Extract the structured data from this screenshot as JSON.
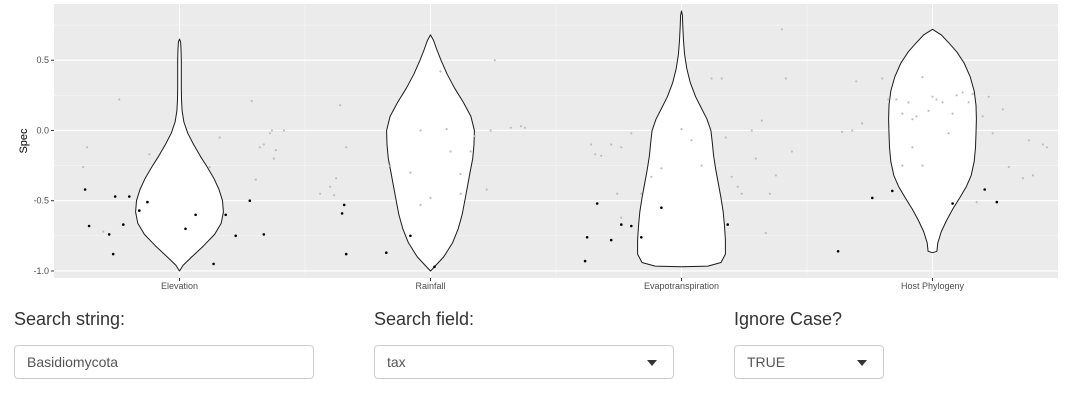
{
  "chart_data": {
    "type": "violin",
    "ylabel": "Spec",
    "xlabel": "",
    "ylim": [
      -1.05,
      0.9
    ],
    "yticks": [
      -1.0,
      -0.5,
      0.0,
      0.5
    ],
    "ytick_labels": [
      "-1.0",
      "-0.5",
      "0.0",
      "0.5"
    ],
    "categories": [
      "Elevation",
      "Rainfall",
      "Evapotranspiration",
      "Host Phylogeny"
    ],
    "grid": true,
    "violins": [
      {
        "category": "Elevation",
        "min": -1.0,
        "max": 0.65,
        "profile": [
          [
            -1.0,
            0.0
          ],
          [
            -0.96,
            0.08
          ],
          [
            -0.9,
            0.28
          ],
          [
            -0.82,
            0.55
          ],
          [
            -0.74,
            0.8
          ],
          [
            -0.66,
            0.95
          ],
          [
            -0.58,
            1.0
          ],
          [
            -0.5,
            0.98
          ],
          [
            -0.42,
            0.9
          ],
          [
            -0.34,
            0.78
          ],
          [
            -0.26,
            0.63
          ],
          [
            -0.18,
            0.47
          ],
          [
            -0.1,
            0.32
          ],
          [
            -0.02,
            0.19
          ],
          [
            0.06,
            0.1
          ],
          [
            0.14,
            0.06
          ],
          [
            0.22,
            0.045
          ],
          [
            0.3,
            0.04
          ],
          [
            0.4,
            0.04
          ],
          [
            0.5,
            0.04
          ],
          [
            0.58,
            0.035
          ],
          [
            0.63,
            0.025
          ],
          [
            0.65,
            0.0
          ]
        ]
      },
      {
        "category": "Rainfall",
        "min": -1.0,
        "max": 0.68,
        "profile": [
          [
            -1.0,
            0.0
          ],
          [
            -0.96,
            0.12
          ],
          [
            -0.9,
            0.3
          ],
          [
            -0.8,
            0.5
          ],
          [
            -0.7,
            0.63
          ],
          [
            -0.6,
            0.72
          ],
          [
            -0.5,
            0.78
          ],
          [
            -0.4,
            0.84
          ],
          [
            -0.3,
            0.9
          ],
          [
            -0.2,
            0.96
          ],
          [
            -0.1,
            0.99
          ],
          [
            0.0,
            1.0
          ],
          [
            0.1,
            0.92
          ],
          [
            0.2,
            0.75
          ],
          [
            0.3,
            0.55
          ],
          [
            0.4,
            0.38
          ],
          [
            0.5,
            0.24
          ],
          [
            0.58,
            0.14
          ],
          [
            0.64,
            0.07
          ],
          [
            0.68,
            0.0
          ]
        ]
      },
      {
        "category": "Evapotranspiration",
        "min": -0.97,
        "max": 0.85,
        "profile": [
          [
            -0.97,
            0.0
          ],
          [
            -0.965,
            0.6
          ],
          [
            -0.94,
            0.9
          ],
          [
            -0.88,
            1.0
          ],
          [
            -0.78,
            1.0
          ],
          [
            -0.68,
            0.98
          ],
          [
            -0.58,
            0.95
          ],
          [
            -0.48,
            0.9
          ],
          [
            -0.38,
            0.84
          ],
          [
            -0.28,
            0.78
          ],
          [
            -0.18,
            0.73
          ],
          [
            -0.08,
            0.7
          ],
          [
            0.0,
            0.67
          ],
          [
            0.08,
            0.58
          ],
          [
            0.16,
            0.45
          ],
          [
            0.24,
            0.32
          ],
          [
            0.34,
            0.2
          ],
          [
            0.44,
            0.12
          ],
          [
            0.54,
            0.07
          ],
          [
            0.64,
            0.045
          ],
          [
            0.74,
            0.03
          ],
          [
            0.82,
            0.02
          ],
          [
            0.85,
            0.0
          ]
        ]
      },
      {
        "category": "Host Phylogeny",
        "min": -0.87,
        "max": 0.72,
        "profile": [
          [
            -0.87,
            0.0
          ],
          [
            -0.86,
            0.1
          ],
          [
            -0.8,
            0.12
          ],
          [
            -0.72,
            0.2
          ],
          [
            -0.64,
            0.32
          ],
          [
            -0.56,
            0.46
          ],
          [
            -0.48,
            0.62
          ],
          [
            -0.4,
            0.77
          ],
          [
            -0.32,
            0.88
          ],
          [
            -0.22,
            0.95
          ],
          [
            -0.12,
            0.98
          ],
          [
            -0.02,
            0.99
          ],
          [
            0.08,
            1.0
          ],
          [
            0.18,
            0.99
          ],
          [
            0.28,
            0.95
          ],
          [
            0.38,
            0.86
          ],
          [
            0.48,
            0.72
          ],
          [
            0.56,
            0.55
          ],
          [
            0.62,
            0.38
          ],
          [
            0.68,
            0.2
          ],
          [
            0.72,
            0.0
          ]
        ]
      }
    ],
    "points": [
      {
        "category": "Elevation",
        "color": "#000000",
        "values": [
          [
            -0.47,
            -0.42
          ],
          [
            -0.45,
            -0.68
          ],
          [
            -0.35,
            -0.74
          ],
          [
            -0.33,
            -0.88
          ],
          [
            -0.32,
            -0.47
          ],
          [
            -0.28,
            -0.67
          ],
          [
            -0.25,
            -0.47
          ],
          [
            -0.2,
            -0.57
          ],
          [
            -0.16,
            -0.51
          ],
          [
            0.03,
            -0.7
          ],
          [
            0.08,
            -0.6
          ],
          [
            0.17,
            -0.95
          ],
          [
            0.23,
            -0.6
          ],
          [
            0.28,
            -0.75
          ],
          [
            0.35,
            -0.5
          ],
          [
            0.42,
            -0.74
          ]
        ]
      },
      {
        "category": "Elevation",
        "color": "#bdbdbd",
        "values": [
          [
            -0.48,
            -0.26
          ],
          [
            -0.46,
            -0.12
          ],
          [
            -0.38,
            -0.72
          ],
          [
            -0.3,
            0.22
          ],
          [
            -0.15,
            -0.17
          ],
          [
            0.15,
            -0.26
          ],
          [
            0.2,
            -0.05
          ],
          [
            0.36,
            0.21
          ],
          [
            0.38,
            -0.35
          ],
          [
            0.4,
            -0.12
          ],
          [
            0.42,
            -0.1
          ],
          [
            0.45,
            -0.02
          ],
          [
            0.46,
            0.0
          ],
          [
            0.47,
            -0.2
          ],
          [
            0.48,
            -0.14
          ],
          [
            0.52,
            0.0
          ]
        ]
      },
      {
        "category": "Rainfall",
        "color": "#000000",
        "values": [
          [
            -0.44,
            -0.59
          ],
          [
            -0.43,
            -0.53
          ],
          [
            -0.42,
            -0.88
          ],
          [
            -0.22,
            -0.87
          ],
          [
            -0.1,
            -0.75
          ],
          [
            0.02,
            -0.97
          ]
        ]
      },
      {
        "category": "Rainfall",
        "color": "#bdbdbd",
        "values": [
          [
            -0.55,
            -0.45
          ],
          [
            -0.5,
            -0.4
          ],
          [
            -0.48,
            -0.46
          ],
          [
            -0.47,
            -0.34
          ],
          [
            -0.45,
            0.18
          ],
          [
            -0.42,
            -0.12
          ],
          [
            -0.2,
            -0.25
          ],
          [
            -0.05,
            -0.53
          ],
          [
            -0.05,
            0.0
          ],
          [
            0.0,
            -0.48
          ],
          [
            0.05,
            0.42
          ],
          [
            0.08,
            0.01
          ],
          [
            0.15,
            -0.31
          ],
          [
            0.2,
            -0.15
          ],
          [
            0.22,
            -0.04
          ],
          [
            0.28,
            -0.42
          ],
          [
            0.3,
            0.0
          ],
          [
            0.32,
            0.5
          ],
          [
            0.4,
            0.02
          ],
          [
            0.45,
            0.03
          ],
          [
            0.47,
            0.02
          ],
          [
            -0.1,
            -0.3
          ],
          [
            0.1,
            -0.15
          ],
          [
            0.15,
            -0.45
          ]
        ]
      },
      {
        "category": "Evapotranspiration",
        "color": "#000000",
        "values": [
          [
            -0.48,
            -0.93
          ],
          [
            -0.47,
            -0.76
          ],
          [
            -0.42,
            -0.52
          ],
          [
            -0.35,
            -0.78
          ],
          [
            -0.3,
            -0.67
          ],
          [
            -0.25,
            -0.68
          ],
          [
            -0.2,
            -0.76
          ],
          [
            -0.1,
            -0.55
          ],
          [
            0.23,
            -0.67
          ]
        ]
      },
      {
        "category": "Evapotranspiration",
        "color": "#bdbdbd",
        "values": [
          [
            -0.45,
            -0.1
          ],
          [
            -0.43,
            -0.17
          ],
          [
            -0.4,
            -0.18
          ],
          [
            -0.35,
            -0.1
          ],
          [
            -0.3,
            -0.12
          ],
          [
            -0.25,
            -0.02
          ],
          [
            -0.2,
            -0.45
          ],
          [
            -0.15,
            -0.33
          ],
          [
            -0.1,
            -0.27
          ],
          [
            0.0,
            0.01
          ],
          [
            0.05,
            -0.07
          ],
          [
            0.1,
            -0.25
          ],
          [
            0.15,
            0.37
          ],
          [
            0.2,
            0.37
          ],
          [
            0.22,
            -0.05
          ],
          [
            0.25,
            -0.33
          ],
          [
            0.28,
            -0.4
          ],
          [
            0.3,
            -0.45
          ],
          [
            0.35,
            0.0
          ],
          [
            0.37,
            -0.2
          ],
          [
            0.4,
            0.07
          ],
          [
            0.42,
            -0.73
          ],
          [
            0.44,
            -0.45
          ],
          [
            0.47,
            -0.32
          ],
          [
            0.5,
            0.72
          ],
          [
            0.52,
            0.37
          ],
          [
            0.55,
            -0.15
          ],
          [
            -0.32,
            -0.45
          ],
          [
            -0.3,
            -0.62
          ]
        ]
      },
      {
        "category": "Host Phylogeny",
        "color": "#000000",
        "values": [
          [
            -0.47,
            -0.86
          ],
          [
            -0.3,
            -0.48
          ],
          [
            -0.2,
            -0.43
          ],
          [
            0.1,
            -0.52
          ],
          [
            0.26,
            -0.42
          ],
          [
            0.32,
            -0.51
          ]
        ]
      },
      {
        "category": "Host Phylogeny",
        "color": "#bdbdbd",
        "values": [
          [
            -0.45,
            -0.01
          ],
          [
            -0.4,
            0.0
          ],
          [
            -0.38,
            0.35
          ],
          [
            -0.35,
            0.05
          ],
          [
            -0.25,
            0.37
          ],
          [
            -0.22,
            0.22
          ],
          [
            -0.18,
            0.22
          ],
          [
            -0.15,
            0.12
          ],
          [
            -0.12,
            0.2
          ],
          [
            -0.1,
            0.08
          ],
          [
            -0.08,
            0.1
          ],
          [
            -0.05,
            0.38
          ],
          [
            -0.02,
            0.14
          ],
          [
            0.0,
            0.24
          ],
          [
            0.02,
            0.22
          ],
          [
            0.05,
            0.2
          ],
          [
            0.08,
            -0.02
          ],
          [
            0.1,
            0.12
          ],
          [
            0.12,
            0.25
          ],
          [
            0.15,
            0.27
          ],
          [
            0.18,
            0.2
          ],
          [
            0.2,
            0.26
          ],
          [
            0.22,
            -0.51
          ],
          [
            0.25,
            0.1
          ],
          [
            0.28,
            0.24
          ],
          [
            0.3,
            -0.02
          ],
          [
            0.35,
            0.15
          ],
          [
            0.38,
            -0.26
          ],
          [
            0.45,
            -0.34
          ],
          [
            0.48,
            -0.07
          ],
          [
            0.5,
            -0.32
          ],
          [
            0.55,
            -0.1
          ],
          [
            0.57,
            -0.12
          ],
          [
            -0.1,
            -0.12
          ],
          [
            -0.15,
            -0.25
          ],
          [
            -0.05,
            -0.25
          ]
        ]
      }
    ]
  },
  "controls": {
    "search_string": {
      "label": "Search string:",
      "value": "Basidiomycota"
    },
    "search_field": {
      "label": "Search field:",
      "value": "tax"
    },
    "ignore_case": {
      "label": "Ignore Case?",
      "value": "TRUE"
    }
  }
}
